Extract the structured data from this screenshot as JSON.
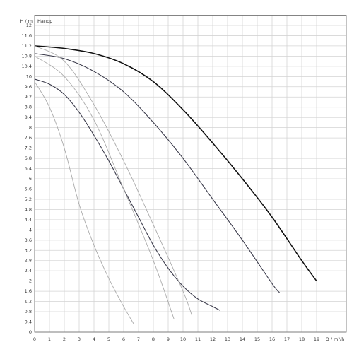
{
  "chart_data": {
    "type": "line",
    "legend_text": "Напор",
    "x_label": "Q / m³/h",
    "y_label": "H / m",
    "xlim": [
      0,
      21
    ],
    "ylim": [
      0,
      12.4
    ],
    "xticks": [
      0,
      1,
      2,
      3,
      4,
      5,
      6,
      7,
      8,
      9,
      10,
      11,
      12,
      13,
      14,
      15,
      16,
      17,
      18,
      19
    ],
    "yticks": [
      0,
      0.4,
      0.8,
      1.2,
      1.6,
      2,
      2.4,
      2.8,
      3.2,
      3.6,
      4,
      4.4,
      4.8,
      5.2,
      5.6,
      6,
      6.4,
      6.8,
      7.2,
      7.6,
      8,
      8.4,
      8.8,
      9.2,
      9.6,
      10,
      10.4,
      10.8,
      11.2,
      11.6,
      12
    ],
    "grid": true,
    "series": [
      {
        "color": "#111111",
        "width": 1.6,
        "x": [
          0,
          2,
          4,
          6,
          8,
          10,
          12,
          14,
          16,
          18,
          19
        ],
        "values": [
          11.2,
          11.1,
          10.9,
          10.5,
          9.8,
          8.7,
          7.4,
          6.0,
          4.5,
          2.8,
          2.0
        ]
      },
      {
        "color": "#3a3a4a",
        "width": 1.1,
        "x": [
          0,
          2,
          4,
          6,
          8,
          10,
          12,
          14,
          16,
          16.5
        ],
        "values": [
          10.9,
          10.7,
          10.2,
          9.4,
          8.2,
          6.8,
          5.2,
          3.6,
          1.9,
          1.55
        ]
      },
      {
        "color": "#3a3a4a",
        "width": 1.1,
        "x": [
          0,
          1,
          2,
          3,
          4,
          5,
          6,
          7,
          8,
          9,
          10,
          11,
          12,
          12.5
        ],
        "values": [
          9.9,
          9.7,
          9.3,
          8.6,
          7.7,
          6.7,
          5.6,
          4.5,
          3.4,
          2.5,
          1.8,
          1.3,
          1.0,
          0.85
        ]
      },
      {
        "color": "#aaaaaa",
        "width": 0.9,
        "x": [
          0,
          1,
          2,
          3,
          4,
          5,
          6,
          6.7
        ],
        "values": [
          9.8,
          8.8,
          7.2,
          5.0,
          3.4,
          2.1,
          1.0,
          0.3
        ]
      },
      {
        "color": "#aaaaaa",
        "width": 0.9,
        "x": [
          0,
          2,
          4,
          6,
          8,
          9.4
        ],
        "values": [
          10.8,
          10.0,
          8.3,
          5.6,
          2.8,
          0.5
        ]
      },
      {
        "color": "#aaaaaa",
        "width": 0.9,
        "x": [
          0,
          2,
          4,
          6,
          8,
          10,
          10.6
        ],
        "values": [
          11.2,
          10.6,
          8.9,
          6.7,
          4.2,
          1.6,
          0.65
        ]
      }
    ]
  }
}
